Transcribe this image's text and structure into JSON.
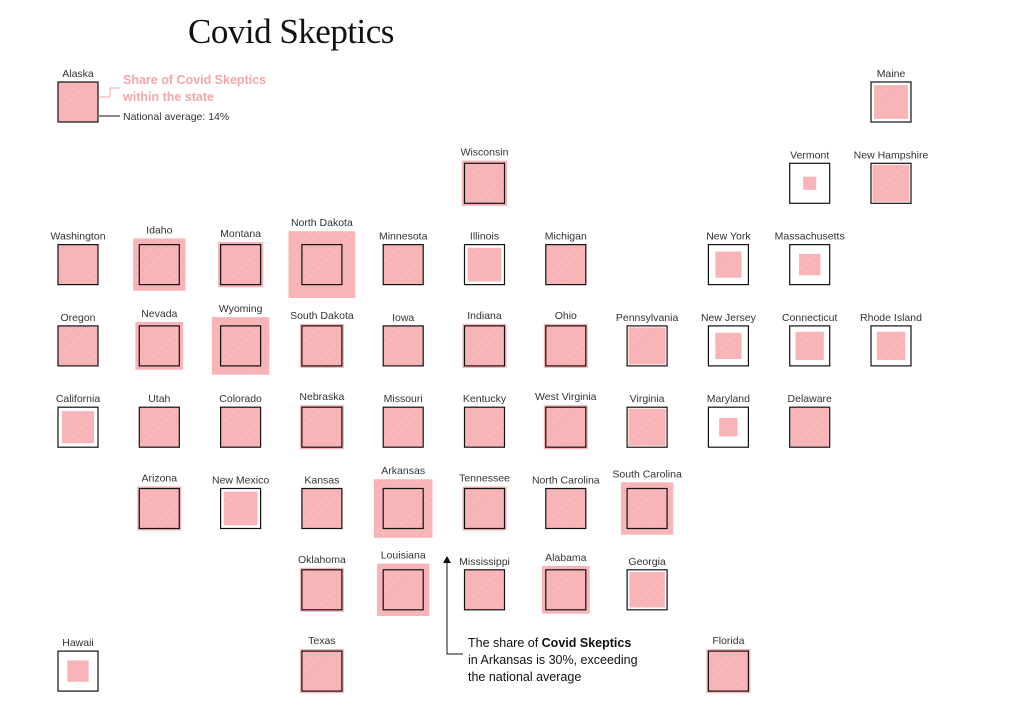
{
  "chart_data": {
    "type": "tile-map",
    "title": "Covid Skeptics",
    "national_average": 14,
    "colors": {
      "fill": "#f8b3b6",
      "outline": "#111111"
    },
    "legend": {
      "share_label_line1": "Share of Covid Skeptics",
      "share_label_line2": "within the state",
      "avg_label": "National average: 14%"
    },
    "annotation": {
      "prefix": "The share of ",
      "bold": "Covid Skeptics",
      "line2": "in Arkansas is 30%, exceeding",
      "line3": "the national average",
      "state": "Arkansas"
    },
    "states": [
      {
        "name": "Alaska",
        "col": 0,
        "row": 0,
        "value": 14
      },
      {
        "name": "Maine",
        "col": 10,
        "row": 0,
        "value": 10
      },
      {
        "name": "Wisconsin",
        "col": 5,
        "row": 1,
        "value": 18
      },
      {
        "name": "Vermont",
        "col": 9,
        "row": 1,
        "value": 1.5
      },
      {
        "name": "New Hampshire",
        "col": 10,
        "row": 1,
        "value": 12
      },
      {
        "name": "Washington",
        "col": 0,
        "row": 2,
        "value": 14
      },
      {
        "name": "Idaho",
        "col": 1,
        "row": 2,
        "value": 24
      },
      {
        "name": "Montana",
        "col": 2,
        "row": 2,
        "value": 18
      },
      {
        "name": "North Dakota",
        "col": 3,
        "row": 2,
        "value": 39
      },
      {
        "name": "Minnesota",
        "col": 4,
        "row": 2,
        "value": 14
      },
      {
        "name": "Illinois",
        "col": 5,
        "row": 2,
        "value": 10
      },
      {
        "name": "Michigan",
        "col": 6,
        "row": 2,
        "value": 14
      },
      {
        "name": "New York",
        "col": 8,
        "row": 2,
        "value": 6
      },
      {
        "name": "Massachusetts",
        "col": 9,
        "row": 2,
        "value": 4
      },
      {
        "name": "Oregon",
        "col": 0,
        "row": 3,
        "value": 14
      },
      {
        "name": "Nevada",
        "col": 1,
        "row": 3,
        "value": 20
      },
      {
        "name": "Wyoming",
        "col": 2,
        "row": 3,
        "value": 29
      },
      {
        "name": "South Dakota",
        "col": 3,
        "row": 3,
        "value": 17
      },
      {
        "name": "Iowa",
        "col": 4,
        "row": 3,
        "value": 14
      },
      {
        "name": "Indiana",
        "col": 5,
        "row": 3,
        "value": 17
      },
      {
        "name": "Ohio",
        "col": 6,
        "row": 3,
        "value": 17
      },
      {
        "name": "Pennsylvania",
        "col": 7,
        "row": 3,
        "value": 12
      },
      {
        "name": "New Jersey",
        "col": 8,
        "row": 3,
        "value": 6
      },
      {
        "name": "Connecticut",
        "col": 9,
        "row": 3,
        "value": 7
      },
      {
        "name": "Rhode Island",
        "col": 10,
        "row": 3,
        "value": 7
      },
      {
        "name": "California",
        "col": 0,
        "row": 4,
        "value": 9
      },
      {
        "name": "Utah",
        "col": 1,
        "row": 4,
        "value": 14
      },
      {
        "name": "Colorado",
        "col": 2,
        "row": 4,
        "value": 14
      },
      {
        "name": "Nebraska",
        "col": 3,
        "row": 4,
        "value": 17
      },
      {
        "name": "Missouri",
        "col": 4,
        "row": 4,
        "value": 14
      },
      {
        "name": "Kentucky",
        "col": 5,
        "row": 4,
        "value": 14
      },
      {
        "name": "West Virginia",
        "col": 6,
        "row": 4,
        "value": 17
      },
      {
        "name": "Virginia",
        "col": 7,
        "row": 4,
        "value": 12
      },
      {
        "name": "Maryland",
        "col": 8,
        "row": 4,
        "value": 3
      },
      {
        "name": "Delaware",
        "col": 9,
        "row": 4,
        "value": 13
      },
      {
        "name": "Arizona",
        "col": 1,
        "row": 5,
        "value": 17
      },
      {
        "name": "New Mexico",
        "col": 2,
        "row": 5,
        "value": 10
      },
      {
        "name": "Kansas",
        "col": 3,
        "row": 5,
        "value": 14
      },
      {
        "name": "Arkansas",
        "col": 4,
        "row": 5,
        "value": 30
      },
      {
        "name": "Tennessee",
        "col": 5,
        "row": 5,
        "value": 17
      },
      {
        "name": "North Carolina",
        "col": 6,
        "row": 5,
        "value": 14
      },
      {
        "name": "South Carolina",
        "col": 7,
        "row": 5,
        "value": 24
      },
      {
        "name": "Oklahoma",
        "col": 3,
        "row": 6,
        "value": 17
      },
      {
        "name": "Louisiana",
        "col": 4,
        "row": 6,
        "value": 24
      },
      {
        "name": "Mississippi",
        "col": 5,
        "row": 6,
        "value": 14
      },
      {
        "name": "Alabama",
        "col": 6,
        "row": 6,
        "value": 20
      },
      {
        "name": "Georgia",
        "col": 7,
        "row": 6,
        "value": 11
      },
      {
        "name": "Hawaii",
        "col": 0,
        "row": 7,
        "value": 4
      },
      {
        "name": "Texas",
        "col": 3,
        "row": 7,
        "value": 17
      },
      {
        "name": "Florida",
        "col": 8,
        "row": 7,
        "value": 17
      }
    ]
  }
}
